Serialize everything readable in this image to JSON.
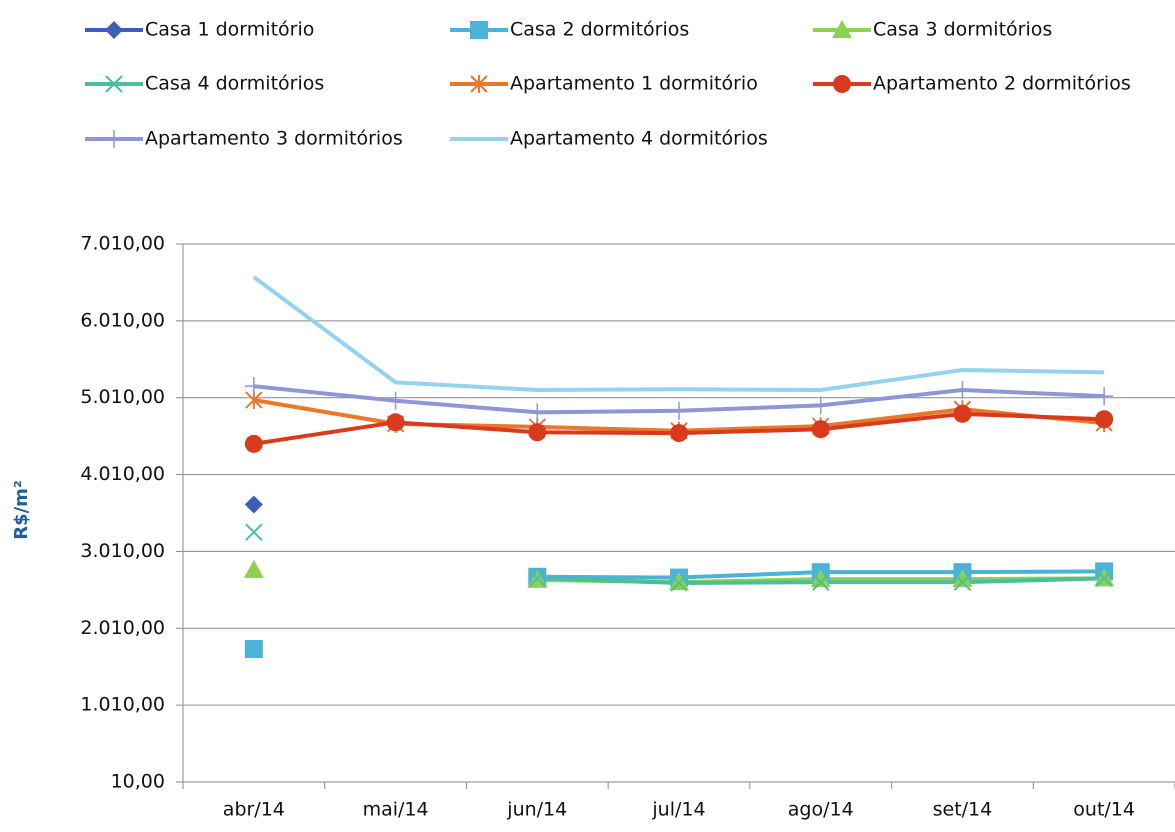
{
  "chart_data": {
    "type": "line",
    "y_label": "R$/m²",
    "categories": [
      "abr/14",
      "mai/14",
      "jun/14",
      "jul/14",
      "ago/14",
      "set/14",
      "out/14"
    ],
    "series": [
      {
        "name": "Casa 1 dormitório",
        "color": "#3f5eb4",
        "marker": "diamond",
        "values": [
          3620,
          null,
          null,
          null,
          null,
          null,
          null
        ]
      },
      {
        "name": "Casa 2 dormitórios",
        "color": "#4bb3d9",
        "marker": "square",
        "values": [
          1740,
          null,
          2680,
          2670,
          2740,
          2740,
          2750
        ]
      },
      {
        "name": "Casa 3 dormitórios",
        "color": "#8fd14f",
        "marker": "triangle",
        "values": [
          2770,
          null,
          2640,
          2610,
          2650,
          2650,
          2660
        ]
      },
      {
        "name": "Casa 4 dormitórios",
        "color": "#4bbf9c",
        "marker": "x",
        "values": [
          3260,
          null,
          2660,
          2600,
          2610,
          2610,
          2660
        ]
      },
      {
        "name": "Apartamento 1 dormitório",
        "color": "#e8782a",
        "marker": "asterisk",
        "values": [
          4980,
          4670,
          4630,
          4580,
          4640,
          4860,
          4680
        ]
      },
      {
        "name": "Apartamento 2 dormitórios",
        "color": "#d83a1e",
        "marker": "circle",
        "values": [
          4410,
          4690,
          4560,
          4550,
          4600,
          4800,
          4730
        ]
      },
      {
        "name": "Apartamento 3 dormitórios",
        "color": "#9095d6",
        "marker": "plus",
        "values": [
          5160,
          4970,
          4820,
          4840,
          4910,
          5110,
          5030
        ]
      },
      {
        "name": "Apartamento 4 dormitórios",
        "color": "#93d3f0",
        "marker": "none",
        "values": [
          6580,
          5210,
          5110,
          5120,
          5110,
          5370,
          5340
        ]
      }
    ],
    "ylim": [
      10,
      7010
    ],
    "yticks": [
      {
        "value": 10,
        "label": "10,00"
      },
      {
        "value": 1010,
        "label": "1.010,00"
      },
      {
        "value": 2010,
        "label": "2.010,00"
      },
      {
        "value": 3010,
        "label": "3.010,00"
      },
      {
        "value": 4010,
        "label": "4.010,00"
      },
      {
        "value": 5010,
        "label": "5.010,00"
      },
      {
        "value": 6010,
        "label": "6.010,00"
      },
      {
        "value": 7010,
        "label": "7.010,00"
      }
    ],
    "grid": true
  }
}
